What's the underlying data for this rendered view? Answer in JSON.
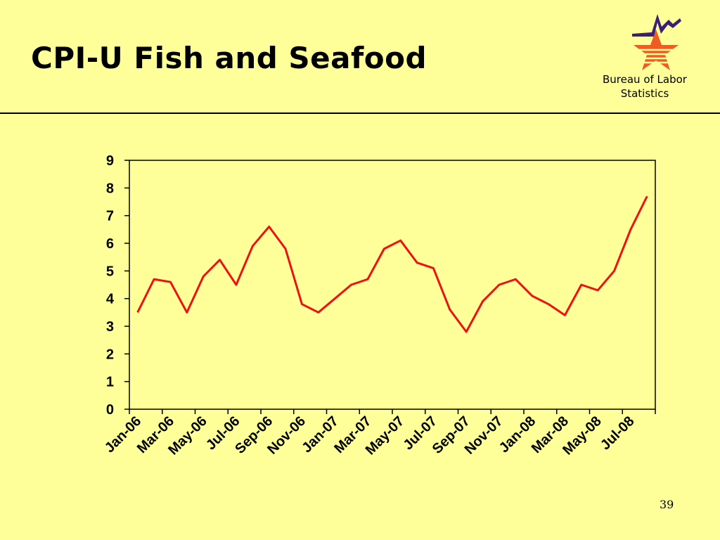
{
  "slide": {
    "title": "CPI-U Fish and Seafood",
    "organization": "Bureau of Labor Statistics",
    "page_number": "39"
  },
  "logo": {
    "icon": "bls-star-logo-icon",
    "colors": [
      "#f05a23",
      "#3c1e78"
    ]
  },
  "colors": {
    "background": "#ffff99",
    "line": "#ee1111",
    "axis": "#000000"
  },
  "chart_data": {
    "type": "line",
    "title": "",
    "xlabel": "",
    "ylabel": "",
    "ylim": [
      0,
      9
    ],
    "yticks": [
      0,
      1,
      2,
      3,
      4,
      5,
      6,
      7,
      8,
      9
    ],
    "grid": false,
    "legend": "none",
    "x": [
      "Jan-06",
      "Feb-06",
      "Mar-06",
      "Apr-06",
      "May-06",
      "Jun-06",
      "Jul-06",
      "Aug-06",
      "Sep-06",
      "Oct-06",
      "Nov-06",
      "Dec-06",
      "Jan-07",
      "Feb-07",
      "Mar-07",
      "Apr-07",
      "May-07",
      "Jun-07",
      "Jul-07",
      "Aug-07",
      "Sep-07",
      "Oct-07",
      "Nov-07",
      "Dec-07",
      "Jan-08",
      "Feb-08",
      "Mar-08",
      "Apr-08",
      "May-08",
      "Jun-08",
      "Jul-08",
      "Aug-08"
    ],
    "tick_labels": [
      "Jan-06",
      "Mar-06",
      "May-06",
      "Jul-06",
      "Sep-06",
      "Nov-06",
      "Jan-07",
      "Mar-07",
      "May-07",
      "Jul-07",
      "Sep-07",
      "Nov-07",
      "Jan-08",
      "Mar-08",
      "May-08",
      "Jul-08"
    ],
    "series": [
      {
        "values": [
          3.5,
          4.7,
          4.6,
          3.5,
          4.8,
          5.4,
          4.5,
          5.9,
          6.6,
          5.8,
          3.8,
          3.5,
          4.0,
          4.5,
          4.7,
          5.8,
          6.1,
          5.3,
          5.1,
          3.6,
          2.8,
          3.9,
          4.5,
          4.7,
          4.1,
          3.8,
          3.4,
          4.5,
          4.3,
          5.0,
          6.5,
          7.7
        ]
      }
    ]
  }
}
